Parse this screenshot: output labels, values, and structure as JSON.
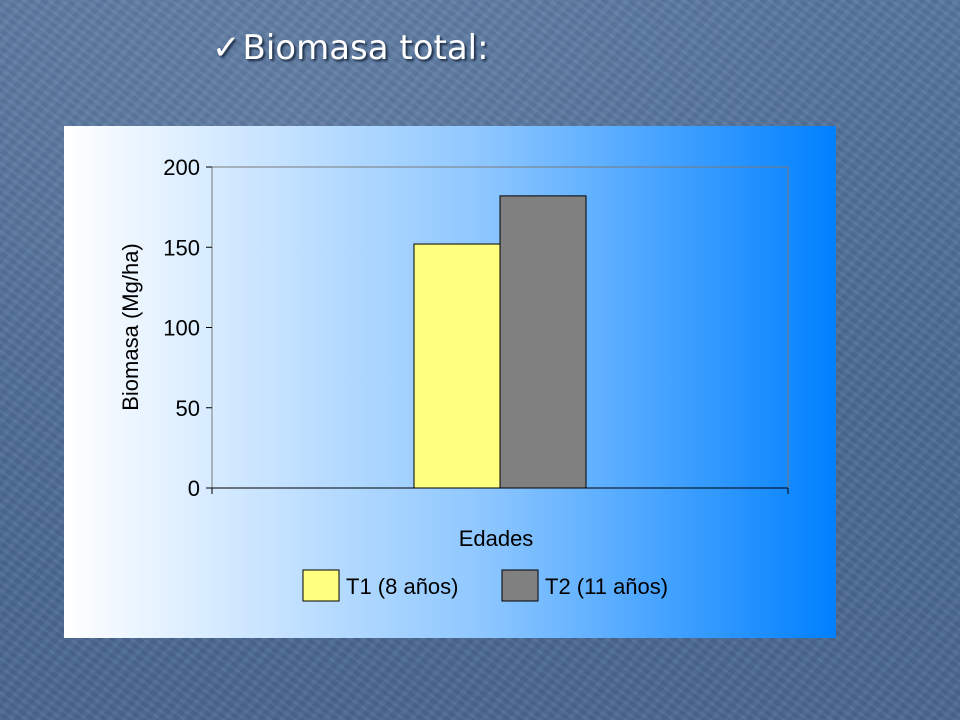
{
  "slide": {
    "title": "Biomasa total:",
    "check_icon": "checkmark-icon"
  },
  "chart_data": {
    "type": "bar",
    "title": "",
    "categories": [
      ""
    ],
    "series": [
      {
        "name": "T1 (8 años)",
        "values": [
          152
        ],
        "color": "#ffff80"
      },
      {
        "name": "T2 (11 años)",
        "values": [
          182
        ],
        "color": "#808080"
      }
    ],
    "xlabel": "Edades",
    "ylabel": "Biomasa  (Mg/ha)",
    "ylim": [
      0,
      200
    ],
    "yticks": [
      0,
      50,
      100,
      150,
      200
    ],
    "grid": false,
    "legend": "bottom",
    "colors": {
      "plot_background": "#ffffff",
      "panel_gradient_start": "#ffffff",
      "panel_gradient_end": "#0080ff"
    }
  }
}
